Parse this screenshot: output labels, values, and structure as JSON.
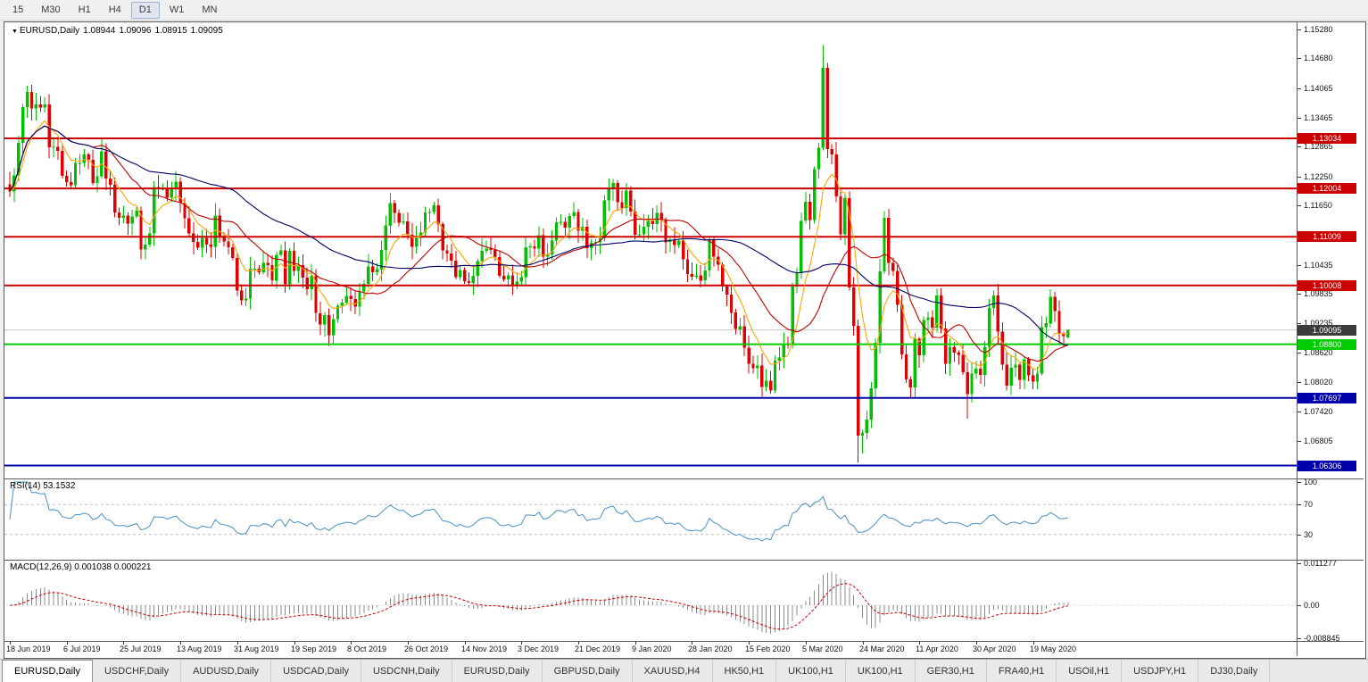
{
  "toolbar": {
    "timeframes": [
      "15",
      "M30",
      "H1",
      "H4",
      "D1",
      "W1",
      "MN"
    ],
    "active_timeframe": "D1"
  },
  "window": {
    "symbol_header": "EURUSD,Daily",
    "ohlc": [
      "1.08944",
      "1.09096",
      "1.08915",
      "1.09095"
    ]
  },
  "chart_data": {
    "type": "candlestick",
    "symbol": "EURUSD",
    "timeframe": "Daily",
    "x_labels": [
      "18 Jun 2019",
      "6 Jul 2019",
      "25 Jul 2019",
      "13 Aug 2019",
      "31 Aug 2019",
      "19 Sep 2019",
      "8 Oct 2019",
      "26 Oct 2019",
      "14 Nov 2019",
      "3 Dec 2019",
      "21 Dec 2019",
      "9 Jan 2020",
      "28 Jan 2020",
      "15 Feb 2020",
      "5 Mar 2020",
      "24 Mar 2020",
      "11 Apr 2020",
      "30 Apr 2020",
      "19 May 2020"
    ],
    "price_axis_labels": [
      "1.15280",
      "1.14680",
      "1.14065",
      "1.13465",
      "1.12865",
      "1.12250",
      "1.11650",
      "1.10435",
      "1.09835",
      "1.09235",
      "1.08620",
      "1.08020",
      "1.07420",
      "1.06805"
    ],
    "y_range": [
      1.0604,
      1.1542
    ],
    "closes": [
      1.1194,
      1.1227,
      1.1294,
      1.1368,
      1.1399,
      1.1365,
      1.1373,
      1.1367,
      1.1373,
      1.1285,
      1.1286,
      1.1278,
      1.1226,
      1.1213,
      1.1207,
      1.1253,
      1.1253,
      1.127,
      1.1259,
      1.1212,
      1.1225,
      1.1277,
      1.1221,
      1.1208,
      1.1151,
      1.114,
      1.1145,
      1.1128,
      1.1143,
      1.1155,
      1.1075,
      1.1085,
      1.1108,
      1.1203,
      1.12,
      1.12,
      1.1181,
      1.1199,
      1.1214,
      1.1171,
      1.1139,
      1.1108,
      1.109,
      1.1078,
      1.1099,
      1.1085,
      1.108,
      1.1145,
      1.1101,
      1.1091,
      1.1079,
      1.1057,
      1.099,
      1.097,
      1.0974,
      1.1035,
      1.1035,
      1.1028,
      1.1047,
      1.1043,
      1.1011,
      1.1064,
      1.1073,
      1.1003,
      1.1072,
      1.1031,
      1.1043,
      1.1017,
      1.0993,
      1.1021,
      1.0944,
      1.0921,
      1.094,
      1.0899,
      1.0932,
      1.0959,
      1.0966,
      1.0979,
      1.0973,
      1.0957,
      1.0989,
      1.1004,
      1.104,
      1.1028,
      1.1034,
      1.1074,
      1.1124,
      1.117,
      1.115,
      1.113,
      1.1133,
      1.1105,
      1.108,
      1.1099,
      1.111,
      1.1151,
      1.1152,
      1.1166,
      1.1127,
      1.1073,
      1.1067,
      1.1052,
      1.1018,
      1.1033,
      1.101,
      1.1006,
      1.1021,
      1.1051,
      1.1072,
      1.1077,
      1.1074,
      1.1059,
      1.1021,
      1.1013,
      1.1022,
      1.1002,
      1.1009,
      1.1018,
      1.1079,
      1.1081,
      1.1077,
      1.1104,
      1.106,
      1.1065,
      1.1093,
      1.1131,
      1.1132,
      1.112,
      1.1144,
      1.1152,
      1.1113,
      1.1122,
      1.1078,
      1.1089,
      1.109,
      1.1098,
      1.1176,
      1.1199,
      1.1212,
      1.1172,
      1.116,
      1.1196,
      1.1153,
      1.1105,
      1.1106,
      1.1122,
      1.1134,
      1.1127,
      1.115,
      1.1136,
      1.109,
      1.1095,
      1.1084,
      1.1093,
      1.1055,
      1.1024,
      1.1019,
      1.1022,
      1.1011,
      1.1032,
      1.1094,
      1.106,
      1.1044,
      1.0999,
      1.0982,
      1.0945,
      1.0911,
      1.0917,
      1.0873,
      1.084,
      1.0831,
      1.0836,
      1.0792,
      1.0805,
      1.0785,
      1.0846,
      1.0853,
      1.0881,
      1.088,
      1.0999,
      1.1026,
      1.1134,
      1.1173,
      1.1135,
      1.124,
      1.1284,
      1.1448,
      1.1281,
      1.127,
      1.1184,
      1.1106,
      1.118,
      1.0997,
      1.0918,
      1.0692,
      1.0698,
      1.0725,
      1.0789,
      1.0883,
      1.103,
      1.114,
      1.1047,
      1.1031,
      1.0961,
      1.0859,
      1.0808,
      1.0791,
      1.0891,
      1.0857,
      1.093,
      1.0935,
      1.0914,
      1.098,
      1.0912,
      1.084,
      1.0875,
      1.0863,
      1.0858,
      1.0822,
      1.0777,
      1.082,
      1.083,
      1.0817,
      1.0875,
      1.0955,
      1.098,
      1.0906,
      1.0838,
      1.0795,
      1.0832,
      1.0838,
      1.0807,
      1.0849,
      1.0816,
      1.0803,
      1.082,
      1.0915,
      1.0923,
      1.0978,
      1.0948,
      1.0901,
      1.0897,
      1.09095
    ],
    "extremes": {
      "4": {
        "high": 1.1412
      },
      "74": {
        "low": 1.0879
      },
      "174": {
        "low": 1.0778
      },
      "186": {
        "high": 1.1495
      },
      "194": {
        "low": 1.0636
      },
      "195": {
        "low": 1.0655
      },
      "219": {
        "low": 1.0727
      }
    },
    "last_candle": {
      "open": 1.08944,
      "high": 1.09096,
      "low": 1.08915,
      "close": 1.09095
    },
    "hlines": [
      {
        "price": 1.13034,
        "label": "1.13034",
        "color": "#cc0000"
      },
      {
        "price": 1.12004,
        "label": "1.12004",
        "color": "#cc0000"
      },
      {
        "price": 1.11009,
        "label": "1.11009",
        "color": "#cc0000"
      },
      {
        "price": 1.10008,
        "label": "1.10008",
        "color": "#cc0000"
      },
      {
        "price": 1.088,
        "label": "1.08800",
        "color": "#00cc00"
      },
      {
        "price": 1.07697,
        "label": "1.07697",
        "color": "#0000aa"
      },
      {
        "price": 1.06306,
        "label": "1.06306",
        "color": "#0000aa"
      }
    ],
    "bid": {
      "price": 1.09095,
      "label": "1.09095",
      "badge_color": "#3c3c3c",
      "line_color": "#c8c8c8"
    },
    "moving_averages": [
      {
        "period": 8,
        "method": "ema",
        "color": "#ffa500"
      },
      {
        "period": 20,
        "method": "sma",
        "color": "#c00000"
      },
      {
        "period": 50,
        "method": "sma",
        "color": "#000066"
      }
    ],
    "indicators": {
      "rsi": {
        "label": "RSI(14) 53.1532",
        "period": 14,
        "value": 53.1532,
        "scale_labels": [
          "100",
          "70",
          "30"
        ],
        "guide_levels": [
          70,
          30
        ],
        "color": "#4a8fc2"
      },
      "macd": {
        "label": "MACD(12,26,9) 0.001038 0.000221",
        "fast": 12,
        "slow": 26,
        "signal": 9,
        "values": [
          0.001038,
          0.000221
        ],
        "scale_labels": [
          "0.011277",
          "0.00",
          "-0.008845"
        ],
        "scale_range": [
          -0.008845,
          0.011277
        ],
        "histogram_color": "#8c8c8c",
        "signal_color": "#cc0000"
      }
    },
    "colors": {
      "bull": "#00c000",
      "bear": "#e00000",
      "background": "#ffffff"
    }
  },
  "tabs": [
    {
      "label": "EURUSD,Daily",
      "active": true
    },
    {
      "label": "USDCHF,Daily"
    },
    {
      "label": "AUDUSD,Daily"
    },
    {
      "label": "USDCAD,Daily"
    },
    {
      "label": "USDCNH,Daily"
    },
    {
      "label": "EURUSD,Daily"
    },
    {
      "label": "GBPUSD,Daily"
    },
    {
      "label": "XAUUSD,H4"
    },
    {
      "label": "HK50,H1"
    },
    {
      "label": "UK100,H1"
    },
    {
      "label": "UK100,H1"
    },
    {
      "label": "GER30,H1"
    },
    {
      "label": "FRA40,H1"
    },
    {
      "label": "USOil,H1"
    },
    {
      "label": "USDJPY,H1"
    },
    {
      "label": "DJ30,Daily"
    }
  ]
}
